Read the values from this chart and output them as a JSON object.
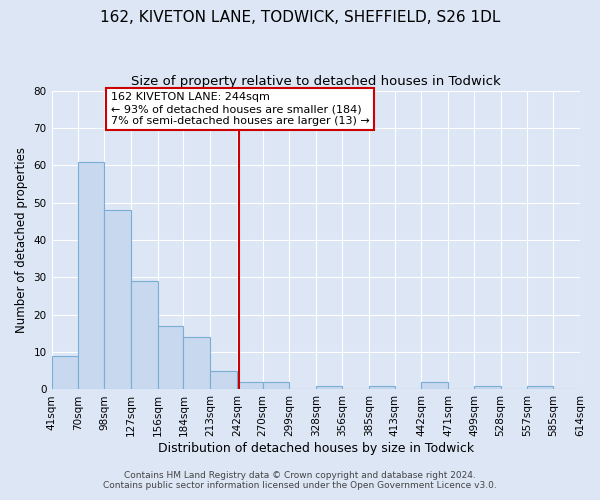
{
  "title": "162, KIVETON LANE, TODWICK, SHEFFIELD, S26 1DL",
  "subtitle": "Size of property relative to detached houses in Todwick",
  "xlabel": "Distribution of detached houses by size in Todwick",
  "ylabel": "Number of detached properties",
  "bin_edges": [
    41,
    70,
    98,
    127,
    156,
    184,
    213,
    242,
    270,
    299,
    328,
    356,
    385,
    413,
    442,
    471,
    499,
    528,
    557,
    585,
    614
  ],
  "bar_heights": [
    9,
    61,
    48,
    29,
    17,
    14,
    5,
    2,
    2,
    0,
    1,
    0,
    1,
    0,
    2,
    0,
    1,
    0,
    1,
    0
  ],
  "bar_color": "#c8d8ee",
  "bar_edgecolor": "#7aaed4",
  "background_color": "#dce6f5",
  "grid_color": "#ffffff",
  "vline_x": 244,
  "vline_color": "#cc0000",
  "annotation_title": "162 KIVETON LANE: 244sqm",
  "annotation_line1": "← 93% of detached houses are smaller (184)",
  "annotation_line2": "7% of semi-detached houses are larger (13) →",
  "annotation_box_edgecolor": "#cc0000",
  "annotation_box_facecolor": "#ffffff",
  "ylim": [
    0,
    80
  ],
  "yticks": [
    0,
    10,
    20,
    30,
    40,
    50,
    60,
    70,
    80
  ],
  "footer1": "Contains HM Land Registry data © Crown copyright and database right 2024.",
  "footer2": "Contains public sector information licensed under the Open Government Licence v3.0.",
  "title_fontsize": 11,
  "subtitle_fontsize": 9.5,
  "xlabel_fontsize": 9,
  "ylabel_fontsize": 8.5,
  "tick_fontsize": 7.5,
  "footer_fontsize": 6.5,
  "ann_fontsize": 8.0
}
